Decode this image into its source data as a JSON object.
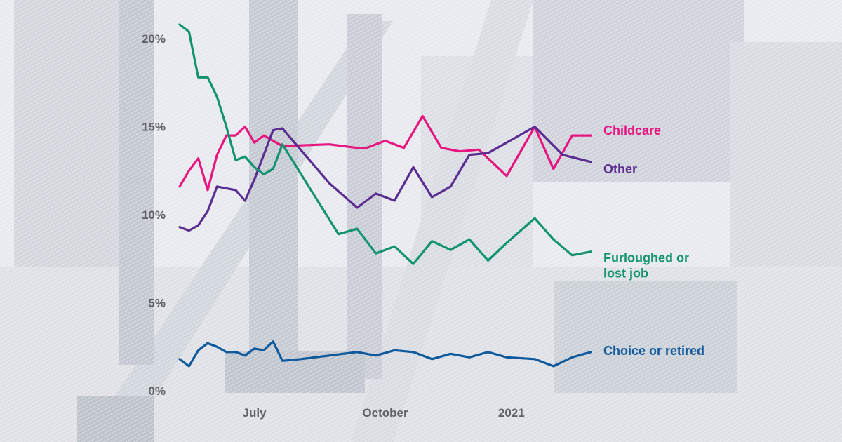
{
  "chart_data": {
    "type": "line",
    "title": "",
    "xlabel": "",
    "ylabel": "",
    "ylim": [
      0,
      21
    ],
    "y_ticks": [
      {
        "value": 0,
        "label": "0%"
      },
      {
        "value": 5,
        "label": "5%"
      },
      {
        "value": 10,
        "label": "10%"
      },
      {
        "value": 15,
        "label": "15%"
      },
      {
        "value": 20,
        "label": "20%"
      }
    ],
    "x_range": [
      0,
      44
    ],
    "x_ticks": [
      {
        "value": 8,
        "label": "July"
      },
      {
        "value": 22,
        "label": "October"
      },
      {
        "value": 35.5,
        "label": "2021"
      }
    ],
    "series": [
      {
        "name": "Childcare",
        "label_lines": [
          "Childcare"
        ],
        "color": "#e6157f",
        "x": [
          0,
          1,
          2,
          3,
          4,
          5,
          6,
          7,
          8,
          9,
          11,
          16,
          19,
          20,
          22,
          24,
          26,
          28,
          30,
          32,
          35,
          38,
          40,
          42,
          44
        ],
        "values": [
          11.6,
          12.5,
          13.2,
          11.4,
          13.4,
          14.5,
          14.5,
          15.0,
          14.1,
          14.5,
          13.9,
          14.0,
          13.8,
          13.8,
          14.2,
          13.8,
          15.6,
          13.8,
          13.6,
          13.7,
          12.2,
          15.0,
          12.6,
          14.5,
          14.5
        ]
      },
      {
        "name": "Other",
        "label_lines": [
          "Other"
        ],
        "color": "#5b2d91",
        "x": [
          0,
          1,
          2,
          3,
          4,
          5,
          6,
          7,
          8,
          9,
          10,
          11,
          16,
          19,
          21,
          23,
          25,
          27,
          29,
          31,
          33,
          38,
          41,
          44
        ],
        "values": [
          9.3,
          9.1,
          9.4,
          10.2,
          11.6,
          11.5,
          11.4,
          10.8,
          12.0,
          13.4,
          14.8,
          14.9,
          11.8,
          10.4,
          11.2,
          10.8,
          12.7,
          11.0,
          11.6,
          13.4,
          13.5,
          15.0,
          13.4,
          13.0
        ]
      },
      {
        "name": "Furloughed or lost job",
        "label_lines": [
          "Furloughed or",
          "lost job"
        ],
        "color": "#12936f",
        "x": [
          0,
          1,
          2,
          3,
          4,
          5,
          6,
          7,
          8,
          9,
          10,
          11,
          17,
          19,
          21,
          23,
          25,
          27,
          29,
          31,
          33,
          35,
          38,
          40,
          42,
          44
        ],
        "values": [
          20.8,
          20.4,
          17.8,
          17.8,
          16.7,
          15.0,
          13.1,
          13.3,
          12.7,
          12.3,
          12.6,
          14.0,
          8.9,
          9.2,
          7.8,
          8.2,
          7.2,
          8.5,
          8.0,
          8.6,
          7.4,
          8.4,
          9.8,
          8.6,
          7.7,
          7.9
        ]
      },
      {
        "name": "Choice or retired",
        "label_lines": [
          "Choice or retired"
        ],
        "color": "#0e5a9c",
        "x": [
          0,
          1,
          2,
          3,
          4,
          5,
          6,
          7,
          8,
          9,
          10,
          11,
          13,
          16,
          19,
          21,
          23,
          25,
          27,
          29,
          31,
          33,
          35,
          38,
          40,
          42,
          44
        ],
        "values": [
          1.8,
          1.4,
          2.3,
          2.7,
          2.5,
          2.2,
          2.2,
          2.0,
          2.4,
          2.3,
          2.8,
          1.7,
          1.8,
          2.0,
          2.2,
          2.0,
          2.3,
          2.2,
          1.8,
          2.1,
          1.9,
          2.2,
          1.9,
          1.8,
          1.4,
          1.9,
          2.2
        ]
      }
    ]
  }
}
